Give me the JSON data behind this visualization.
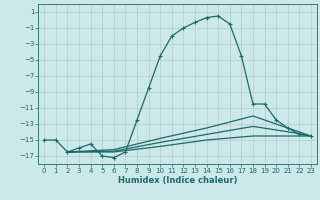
{
  "xlabel": "Humidex (Indice chaleur)",
  "bg_color": "#cce8e8",
  "grid_color": "#b0cccc",
  "line_color": "#1a6b6b",
  "xlim": [
    -0.5,
    23.5
  ],
  "ylim": [
    -18,
    2
  ],
  "yticks": [
    1,
    -1,
    -3,
    -5,
    -7,
    -9,
    -11,
    -13,
    -15,
    -17
  ],
  "xticks": [
    0,
    1,
    2,
    3,
    4,
    5,
    6,
    7,
    8,
    9,
    10,
    11,
    12,
    13,
    14,
    15,
    16,
    17,
    18,
    19,
    20,
    21,
    22,
    23
  ],
  "main_line": {
    "x": [
      0,
      1,
      2,
      3,
      4,
      5,
      6,
      7,
      8,
      9,
      10,
      11,
      12,
      13,
      14,
      15,
      16,
      17,
      18,
      19,
      20,
      21,
      22,
      23
    ],
    "y": [
      -15,
      -15,
      -16.5,
      -16,
      -15.5,
      -17,
      -17.2,
      -16.5,
      -12.5,
      -8.5,
      -4.5,
      -2,
      -1,
      -0.3,
      0.3,
      0.5,
      -0.5,
      -4.5,
      -10.5,
      -10.5,
      -12.5,
      -13.5,
      -14.3,
      -14.5
    ]
  },
  "flat_lines": [
    {
      "x": [
        2,
        6,
        10,
        14,
        18,
        22,
        23
      ],
      "y": [
        -16.5,
        -16.2,
        -14.8,
        -13.5,
        -12.0,
        -14.0,
        -14.5
      ]
    },
    {
      "x": [
        2,
        6,
        10,
        14,
        18,
        22,
        23
      ],
      "y": [
        -16.5,
        -16.4,
        -15.3,
        -14.3,
        -13.3,
        -14.2,
        -14.5
      ]
    },
    {
      "x": [
        2,
        6,
        10,
        14,
        18,
        22,
        23
      ],
      "y": [
        -16.5,
        -16.5,
        -15.8,
        -15.0,
        -14.5,
        -14.5,
        -14.5
      ]
    }
  ]
}
